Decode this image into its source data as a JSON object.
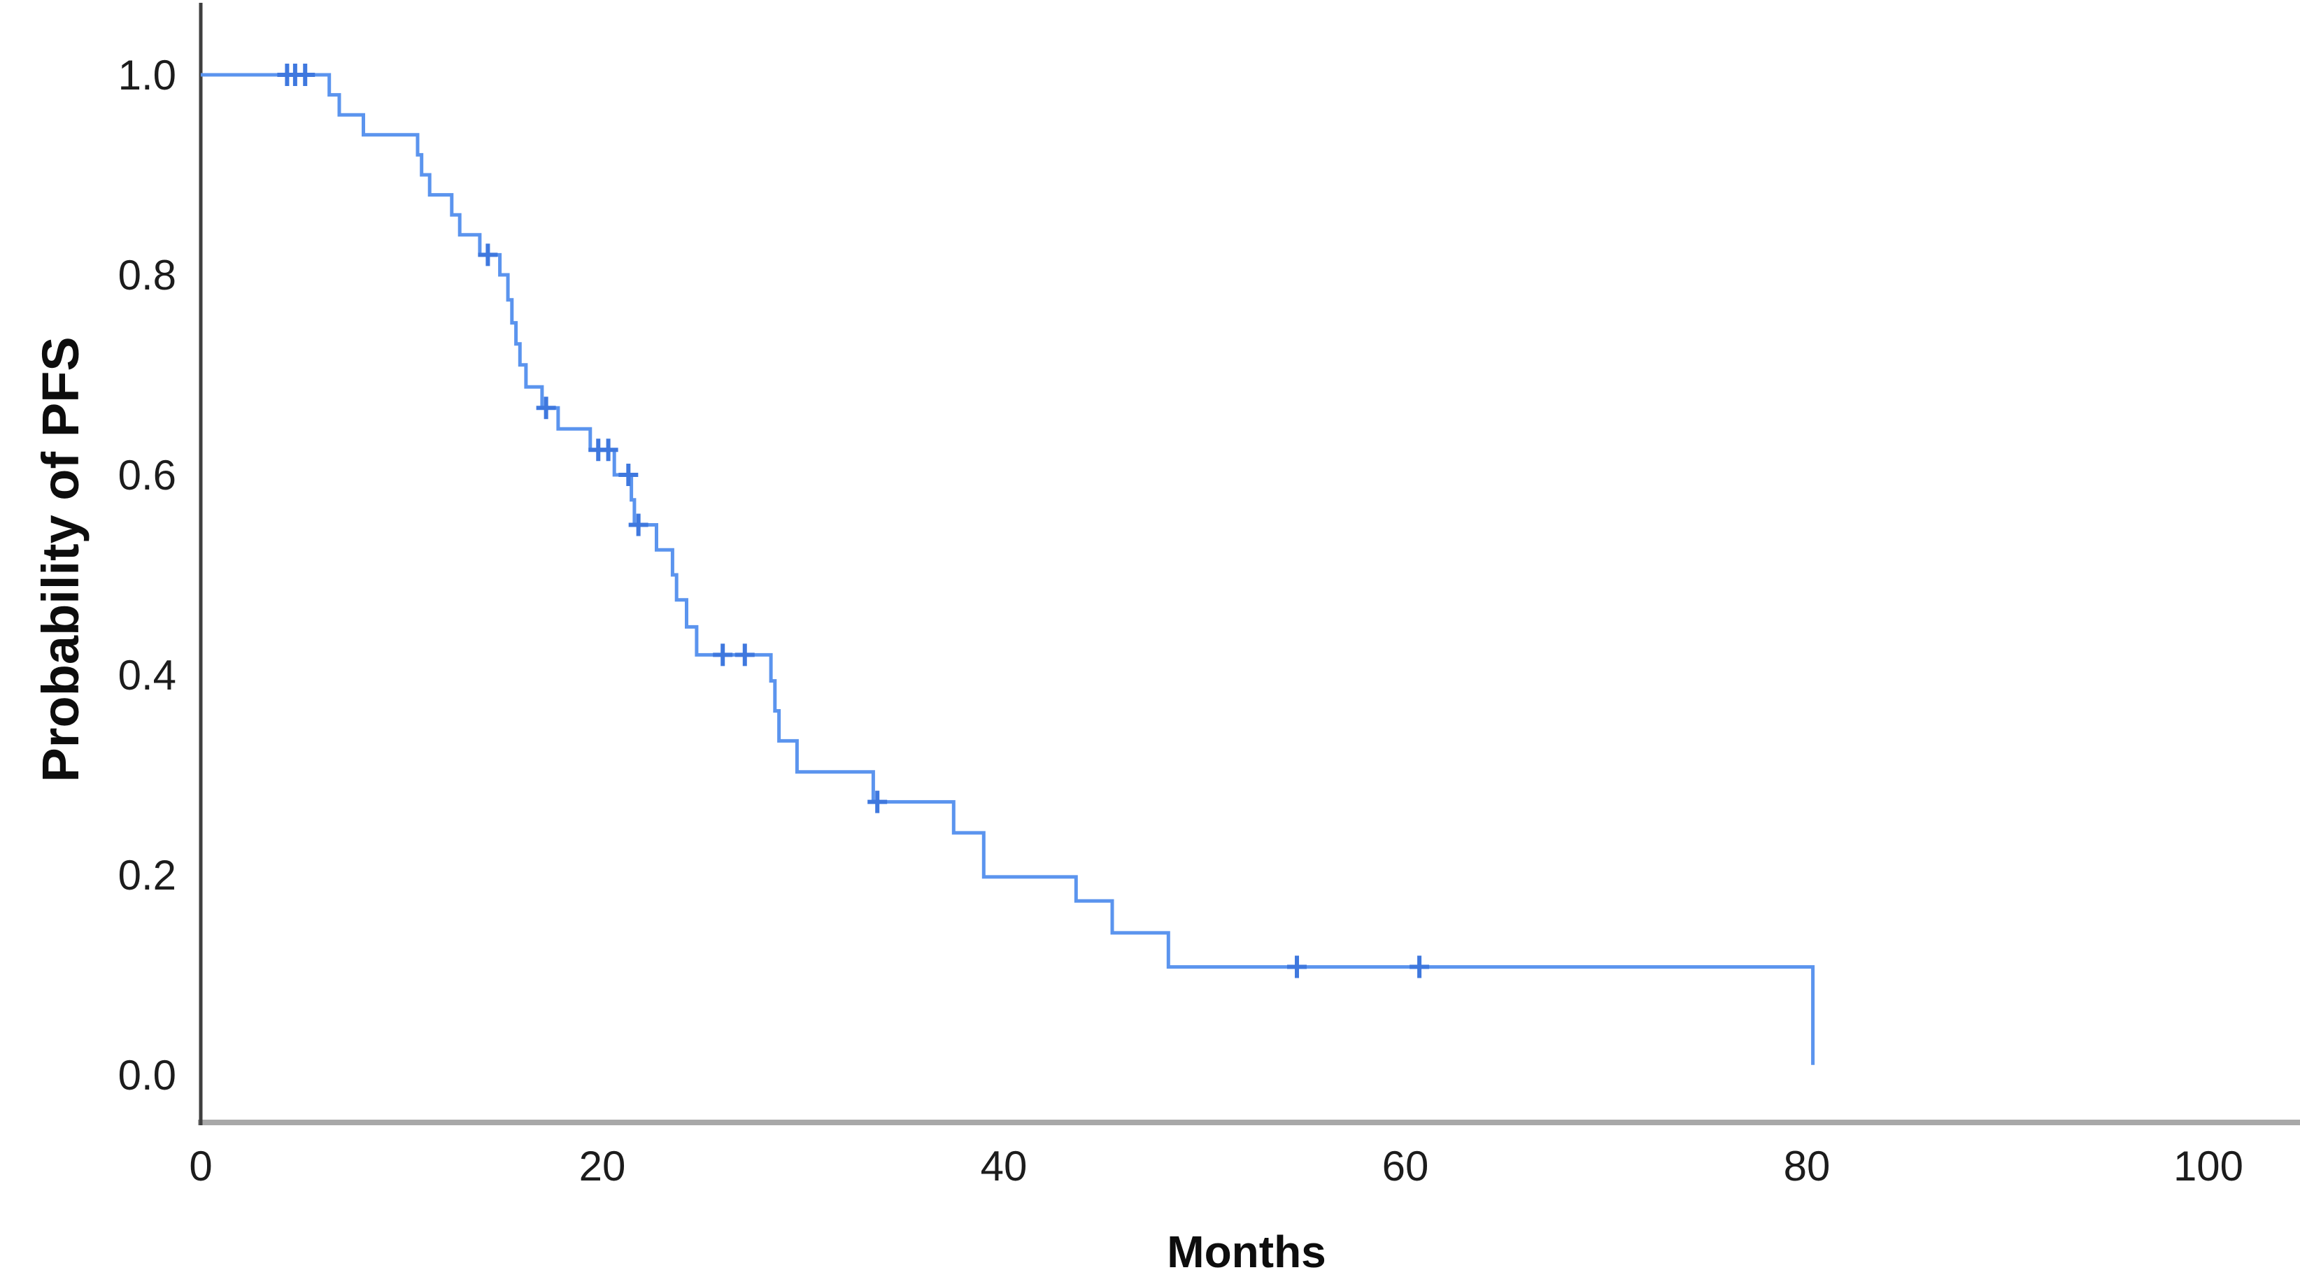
{
  "chart_data": {
    "type": "line",
    "subtype": "kaplan_meier_step_curve",
    "title": "",
    "xlabel": "Months",
    "ylabel": "Probability of PFS",
    "xlim": [
      0,
      104
    ],
    "ylim": [
      0.0,
      1.0
    ],
    "grid": false,
    "legend": null,
    "xticks": [
      0,
      20,
      40,
      60,
      80,
      100
    ],
    "xtick_labels": [
      "0",
      "20",
      "40",
      "60",
      "80",
      "100"
    ],
    "yticks": [
      0.0,
      0.2,
      0.4,
      0.6,
      0.8,
      1.0
    ],
    "ytick_labels": [
      "0.0",
      "0.2",
      "0.4",
      "0.6",
      "0.8",
      "1.0"
    ],
    "colors": {
      "line": "#5b94ee",
      "censor": "#3f78de",
      "y_axis": "#3f3f3f",
      "x_axis": "#a8a8a8",
      "tick_text": "#1c1c1c",
      "label_text": "#0d0d0d",
      "background": "#ffffff"
    },
    "series": [
      {
        "name": "PFS",
        "description": "Kaplan-Meier step curve; each pair is [months, survival probability after event]; final pair is terminal drop",
        "steps": [
          [
            0,
            1.0
          ],
          [
            6.4,
            0.98
          ],
          [
            6.9,
            0.96
          ],
          [
            8.1,
            0.94
          ],
          [
            10.8,
            0.92
          ],
          [
            11.0,
            0.9
          ],
          [
            11.4,
            0.88
          ],
          [
            12.5,
            0.86
          ],
          [
            12.9,
            0.84
          ],
          [
            13.9,
            0.82
          ],
          [
            14.9,
            0.8
          ],
          [
            15.3,
            0.775
          ],
          [
            15.5,
            0.752
          ],
          [
            15.7,
            0.731
          ],
          [
            15.9,
            0.71
          ],
          [
            16.2,
            0.688
          ],
          [
            17.0,
            0.667
          ],
          [
            17.8,
            0.646
          ],
          [
            19.4,
            0.625
          ],
          [
            20.6,
            0.6
          ],
          [
            21.45,
            0.575
          ],
          [
            21.6,
            0.55
          ],
          [
            22.7,
            0.525
          ],
          [
            23.5,
            0.5
          ],
          [
            23.7,
            0.475
          ],
          [
            24.2,
            0.448
          ],
          [
            24.7,
            0.42
          ],
          [
            28.4,
            0.394
          ],
          [
            28.6,
            0.364
          ],
          [
            28.8,
            0.334
          ],
          [
            29.7,
            0.303
          ],
          [
            33.5,
            0.273
          ],
          [
            37.5,
            0.242
          ],
          [
            39.0,
            0.198
          ],
          [
            43.6,
            0.174
          ],
          [
            45.4,
            0.142
          ],
          [
            48.2,
            0.108
          ],
          [
            80.3,
            0.01
          ]
        ],
        "censor_marks": [
          [
            4.3,
            1.0
          ],
          [
            4.7,
            1.0
          ],
          [
            5.2,
            1.0
          ],
          [
            14.3,
            0.82
          ],
          [
            17.2,
            0.667
          ],
          [
            19.8,
            0.625
          ],
          [
            20.3,
            0.625
          ],
          [
            21.3,
            0.6
          ],
          [
            21.8,
            0.55
          ],
          [
            26.0,
            0.42
          ],
          [
            27.1,
            0.42
          ],
          [
            33.7,
            0.273
          ],
          [
            54.6,
            0.108
          ],
          [
            60.7,
            0.108
          ]
        ]
      }
    ]
  }
}
